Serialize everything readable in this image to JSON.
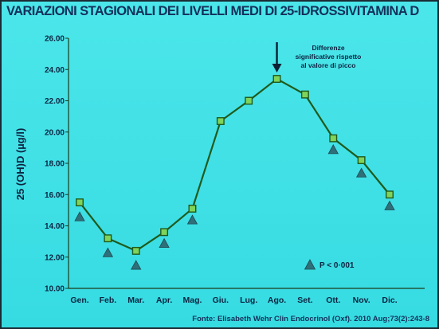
{
  "title": "VARIAZIONI STAGIONALI DEI LIVELLI MEDI DI 25-IDROSSIVITAMINA D",
  "source": "Fonte: Elisabeth Wehr Clin Endocrinol (Oxf). 2010 Aug;73(2):243-8",
  "colors": {
    "background": "#3ee0e6",
    "line": "#1f5a1c",
    "marker_fill": "#7fd35a",
    "triangle": "#2e6f7a",
    "text": "#0d2340"
  },
  "chart_data": {
    "type": "line",
    "title": "VARIAZIONI STAGIONALI DEI LIVELLI MEDI DI 25-IDROSSIVITAMINA D",
    "xlabel": "",
    "ylabel": "25 (OH)D (µg/l)",
    "ylim": [
      10,
      26
    ],
    "yticks": [
      "10.00",
      "12.00",
      "14.00",
      "16.00",
      "18.00",
      "20.00",
      "22.00",
      "24.00",
      "26.00"
    ],
    "grid": false,
    "categories": [
      "Gen.",
      "Feb.",
      "Mar.",
      "Apr.",
      "Mag.",
      "Giu.",
      "Lug.",
      "Ago.",
      "Set.",
      "Ott.",
      "Nov.",
      "Dic."
    ],
    "series": [
      {
        "marker": "square",
        "values": [
          15.5,
          13.2,
          12.4,
          13.6,
          15.1,
          20.7,
          22.0,
          23.4,
          22.4,
          19.6,
          18.2,
          16.0
        ]
      }
    ],
    "significant": {
      "marker": "triangle",
      "points": [
        {
          "category": "Gen.",
          "value": 14.6
        },
        {
          "category": "Feb.",
          "value": 12.3
        },
        {
          "category": "Mar.",
          "value": 11.5
        },
        {
          "category": "Apr.",
          "value": 12.9
        },
        {
          "category": "Mag.",
          "value": 14.4
        },
        {
          "category": "Ott.",
          "value": 18.9
        },
        {
          "category": "Nov.",
          "value": 17.4
        },
        {
          "category": "Dic.",
          "value": 15.3
        }
      ]
    },
    "annotation": {
      "lines": [
        "Differenze",
        "significative rispetto",
        "al valore di picco"
      ],
      "points_to": "Ago."
    },
    "legend": {
      "label": "P < 0·001",
      "placement": "bottom-right"
    }
  }
}
